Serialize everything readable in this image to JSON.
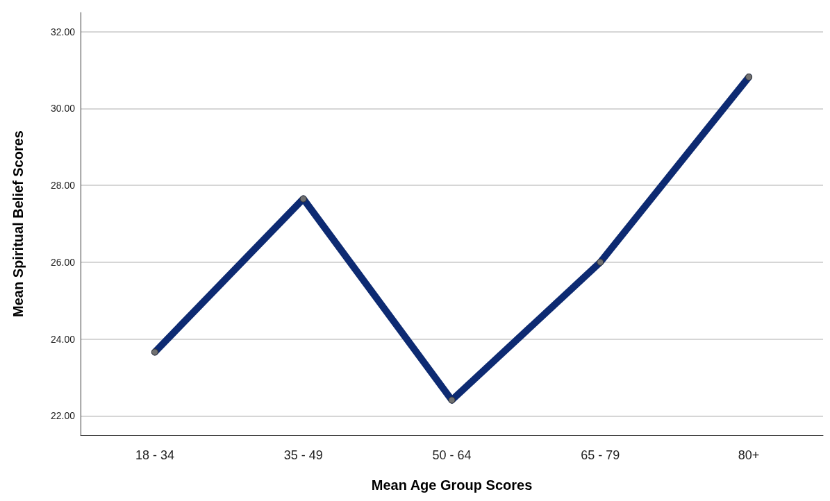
{
  "chart_data": {
    "type": "line",
    "xlabel": "Mean Age Group Scores",
    "ylabel": "Mean Spiritual Belief Scores",
    "categories": [
      "18 - 34",
      "35 - 49",
      "50 - 64",
      "65 - 79",
      "80+"
    ],
    "series": [
      {
        "color": "#0d2a72",
        "values": [
          23.66,
          27.65,
          22.41,
          26.0,
          30.82
        ]
      }
    ],
    "ylim": [
      21.5,
      32.5
    ],
    "yticks": [
      {
        "value": 22,
        "label": "22.00"
      },
      {
        "value": 24,
        "label": "24.00"
      },
      {
        "value": 26,
        "label": "26.00"
      },
      {
        "value": 28,
        "label": "28.00"
      },
      {
        "value": 30,
        "label": "30.00"
      },
      {
        "value": 32,
        "label": "32.00"
      }
    ],
    "grid": "y",
    "marker": "circle",
    "line_style": "solid"
  }
}
